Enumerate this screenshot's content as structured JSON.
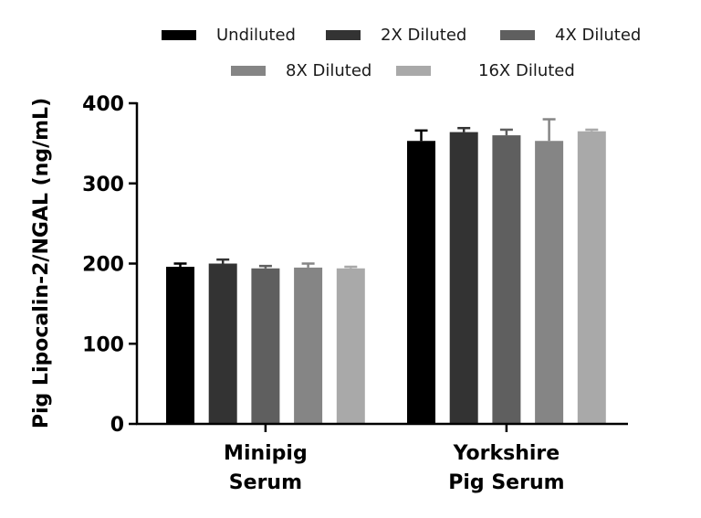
{
  "chart_data": {
    "type": "bar",
    "title": "",
    "xlabel": "",
    "ylabel": "Pig Lipocalin-2/NGAL (ng/mL)",
    "ylim": [
      0,
      400
    ],
    "yticks": [
      0,
      100,
      200,
      300,
      400
    ],
    "categories": [
      [
        "Minipig",
        "Serum"
      ],
      [
        "Yorkshire",
        "Pig Serum"
      ]
    ],
    "series": [
      {
        "name": "Undiluted",
        "color": "#000000",
        "values": [
          196,
          353
        ],
        "errors": [
          4,
          13
        ]
      },
      {
        "name": "2X Diluted",
        "color": "#333333",
        "values": [
          200,
          364
        ],
        "errors": [
          5,
          5
        ]
      },
      {
        "name": "4X Diluted",
        "color": "#5f5f5f",
        "values": [
          194,
          360
        ],
        "errors": [
          3,
          7
        ]
      },
      {
        "name": "8X Diluted",
        "color": "#858585",
        "values": [
          195,
          353
        ],
        "errors": [
          5,
          27
        ]
      },
      {
        "name": "16X Diluted",
        "color": "#a9a9a9",
        "values": [
          194,
          365
        ],
        "errors": [
          2,
          2
        ]
      }
    ],
    "legend": "top",
    "grid": false
  }
}
